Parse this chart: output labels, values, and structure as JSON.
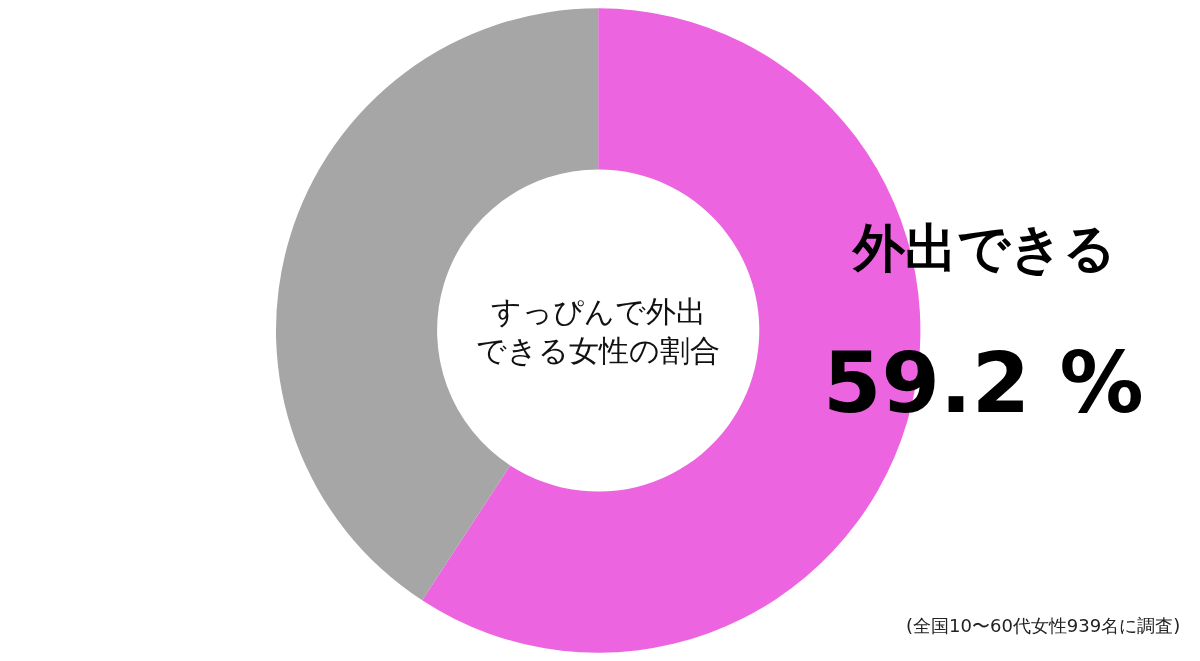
{
  "chart_data": {
    "type": "donut",
    "title": "すっぴんで外出できる女性の割合",
    "categories": [
      "外出できる",
      null
    ],
    "values": [
      59.2,
      40.8
    ],
    "colors": [
      "#ec64df",
      "#a6a6a6"
    ],
    "value_labels": [
      "59.2 %",
      null
    ],
    "legend": false,
    "annotations": [
      "(全国10〜60代女性939名に調査)"
    ]
  }
}
